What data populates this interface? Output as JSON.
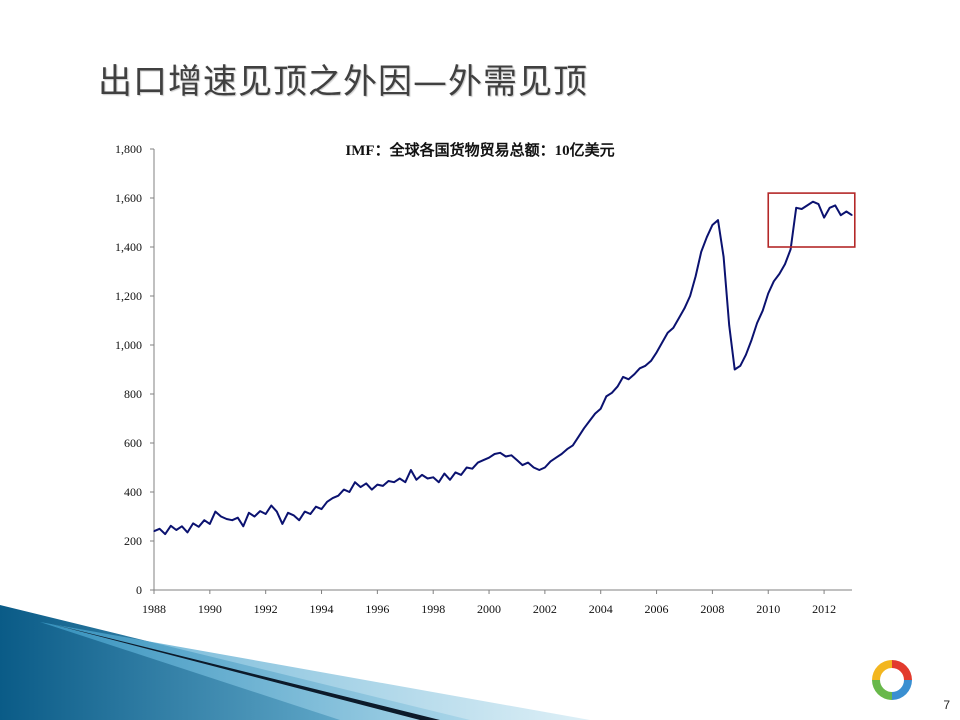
{
  "slide": {
    "title": "出口增速见顶之外因—外需见顶",
    "page_number": "7"
  },
  "colors": {
    "line": "#0b1270",
    "highlight_box": "#b42828",
    "axis": "#808080"
  },
  "chart_data": {
    "type": "line",
    "title": "IMF：全球各国货物贸易总额：10亿美元",
    "xlabel": "",
    "ylabel": "",
    "ylim": [
      0,
      1800
    ],
    "xlim": [
      1988,
      2013
    ],
    "y_ticks": [
      0,
      200,
      400,
      600,
      800,
      1000,
      1200,
      1400,
      1600,
      1800
    ],
    "y_tick_labels": [
      "0",
      "200",
      "400",
      "600",
      "800",
      "1,000",
      "1,200",
      "1,400",
      "1,600",
      "1,800"
    ],
    "x_ticks": [
      1988,
      1990,
      1992,
      1994,
      1996,
      1998,
      2000,
      2002,
      2004,
      2006,
      2008,
      2010,
      2012
    ],
    "x_tick_labels": [
      "1988",
      "1990",
      "1992",
      "1994",
      "1996",
      "1998",
      "2000",
      "2002",
      "2004",
      "2006",
      "2008",
      "2010",
      "2012"
    ],
    "grid": false,
    "highlight_region": {
      "x": [
        2010.0,
        2013.1
      ],
      "y": [
        1400,
        1620
      ]
    },
    "series": [
      {
        "name": "",
        "points": [
          [
            1988.0,
            240
          ],
          [
            1988.2,
            250
          ],
          [
            1988.4,
            228
          ],
          [
            1988.6,
            262
          ],
          [
            1988.8,
            245
          ],
          [
            1989.0,
            260
          ],
          [
            1989.2,
            235
          ],
          [
            1989.4,
            272
          ],
          [
            1989.6,
            258
          ],
          [
            1989.8,
            285
          ],
          [
            1990.0,
            270
          ],
          [
            1990.2,
            320
          ],
          [
            1990.4,
            300
          ],
          [
            1990.6,
            290
          ],
          [
            1990.8,
            285
          ],
          [
            1991.0,
            295
          ],
          [
            1991.2,
            260
          ],
          [
            1991.4,
            315
          ],
          [
            1991.6,
            300
          ],
          [
            1991.8,
            322
          ],
          [
            1992.0,
            310
          ],
          [
            1992.2,
            345
          ],
          [
            1992.4,
            320
          ],
          [
            1992.6,
            270
          ],
          [
            1992.8,
            315
          ],
          [
            1993.0,
            305
          ],
          [
            1993.2,
            285
          ],
          [
            1993.4,
            320
          ],
          [
            1993.6,
            310
          ],
          [
            1993.8,
            340
          ],
          [
            1994.0,
            330
          ],
          [
            1994.2,
            360
          ],
          [
            1994.4,
            375
          ],
          [
            1994.6,
            385
          ],
          [
            1994.8,
            410
          ],
          [
            1995.0,
            400
          ],
          [
            1995.2,
            440
          ],
          [
            1995.4,
            420
          ],
          [
            1995.6,
            435
          ],
          [
            1995.8,
            410
          ],
          [
            1996.0,
            430
          ],
          [
            1996.2,
            425
          ],
          [
            1996.4,
            445
          ],
          [
            1996.6,
            440
          ],
          [
            1996.8,
            455
          ],
          [
            1997.0,
            440
          ],
          [
            1997.2,
            490
          ],
          [
            1997.4,
            450
          ],
          [
            1997.6,
            470
          ],
          [
            1997.8,
            455
          ],
          [
            1998.0,
            460
          ],
          [
            1998.2,
            440
          ],
          [
            1998.4,
            475
          ],
          [
            1998.6,
            450
          ],
          [
            1998.8,
            480
          ],
          [
            1999.0,
            470
          ],
          [
            1999.2,
            500
          ],
          [
            1999.4,
            495
          ],
          [
            1999.6,
            520
          ],
          [
            1999.8,
            530
          ],
          [
            2000.0,
            540
          ],
          [
            2000.2,
            555
          ],
          [
            2000.4,
            560
          ],
          [
            2000.6,
            545
          ],
          [
            2000.8,
            550
          ],
          [
            2001.0,
            530
          ],
          [
            2001.2,
            510
          ],
          [
            2001.4,
            520
          ],
          [
            2001.6,
            500
          ],
          [
            2001.8,
            490
          ],
          [
            2002.0,
            500
          ],
          [
            2002.2,
            525
          ],
          [
            2002.4,
            540
          ],
          [
            2002.6,
            555
          ],
          [
            2002.8,
            575
          ],
          [
            2003.0,
            590
          ],
          [
            2003.2,
            625
          ],
          [
            2003.4,
            660
          ],
          [
            2003.6,
            690
          ],
          [
            2003.8,
            720
          ],
          [
            2004.0,
            740
          ],
          [
            2004.2,
            790
          ],
          [
            2004.4,
            805
          ],
          [
            2004.6,
            830
          ],
          [
            2004.8,
            870
          ],
          [
            2005.0,
            860
          ],
          [
            2005.2,
            880
          ],
          [
            2005.4,
            905
          ],
          [
            2005.6,
            915
          ],
          [
            2005.8,
            935
          ],
          [
            2006.0,
            970
          ],
          [
            2006.2,
            1010
          ],
          [
            2006.4,
            1050
          ],
          [
            2006.6,
            1070
          ],
          [
            2006.8,
            1110
          ],
          [
            2007.0,
            1150
          ],
          [
            2007.2,
            1200
          ],
          [
            2007.4,
            1280
          ],
          [
            2007.6,
            1380
          ],
          [
            2007.8,
            1440
          ],
          [
            2008.0,
            1490
          ],
          [
            2008.2,
            1510
          ],
          [
            2008.4,
            1360
          ],
          [
            2008.6,
            1080
          ],
          [
            2008.8,
            900
          ],
          [
            2009.0,
            915
          ],
          [
            2009.2,
            960
          ],
          [
            2009.4,
            1020
          ],
          [
            2009.6,
            1090
          ],
          [
            2009.8,
            1140
          ],
          [
            2010.0,
            1210
          ],
          [
            2010.2,
            1260
          ],
          [
            2010.4,
            1290
          ],
          [
            2010.6,
            1330
          ],
          [
            2010.8,
            1390
          ],
          [
            2011.0,
            1560
          ],
          [
            2011.2,
            1555
          ],
          [
            2011.4,
            1570
          ],
          [
            2011.6,
            1585
          ],
          [
            2011.8,
            1575
          ],
          [
            2012.0,
            1520
          ],
          [
            2012.2,
            1560
          ],
          [
            2012.4,
            1570
          ],
          [
            2012.6,
            1530
          ],
          [
            2012.8,
            1545
          ],
          [
            2013.0,
            1530
          ]
        ]
      }
    ]
  }
}
